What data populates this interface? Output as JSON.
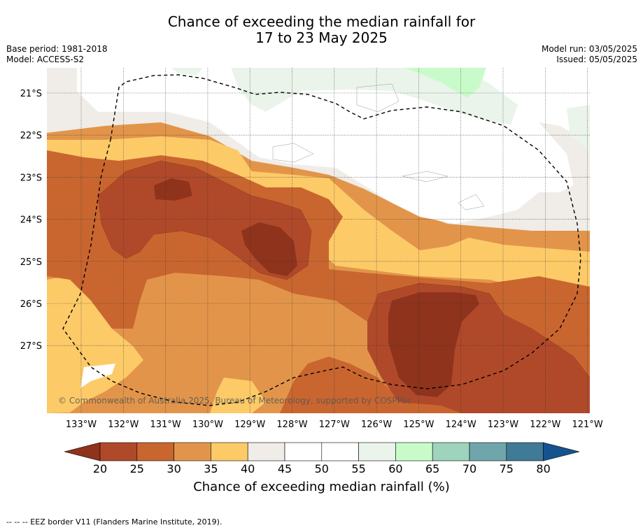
{
  "title": {
    "line1": "Chance of exceeding the median rainfall for",
    "line2": "17 to 23 May 2025"
  },
  "meta": {
    "base_period": "Base period: 1981-2018",
    "model": "Model: ACCESS-S2",
    "model_run": "Model run: 03/05/2025",
    "issued": "Issued: 05/05/2025"
  },
  "map": {
    "lat_labels": [
      "21°S",
      "22°S",
      "23°S",
      "24°S",
      "25°S",
      "26°S",
      "27°S"
    ],
    "lon_labels": [
      "133°W",
      "132°W",
      "131°W",
      "130°W",
      "129°W",
      "128°W",
      "127°W",
      "126°W",
      "125°W",
      "124°W",
      "123°W",
      "122°W",
      "121°W"
    ],
    "copyright": "© Commonwealth of Australia 2025, Bureau of Meteorology, supported by COSPPac",
    "legend_note": "-- -- -- EEZ border V11 (Flanders Marine Institute, 2019)."
  },
  "colorbar": {
    "title": "Chance of exceeding median rainfall (%)",
    "ticks": [
      "20",
      "25",
      "30",
      "35",
      "40",
      "45",
      "50",
      "55",
      "60",
      "65",
      "70",
      "75",
      "80"
    ],
    "colors": [
      "#8f331c",
      "#b0492a",
      "#c9662f",
      "#e2954a",
      "#fdca68",
      "#f0ece7",
      "#ffffff",
      "#ffffff",
      "#eaf4ea",
      "#c8fbc9",
      "#9ed3bd",
      "#6fa6ab",
      "#3f7a97",
      "#15538e"
    ]
  }
}
